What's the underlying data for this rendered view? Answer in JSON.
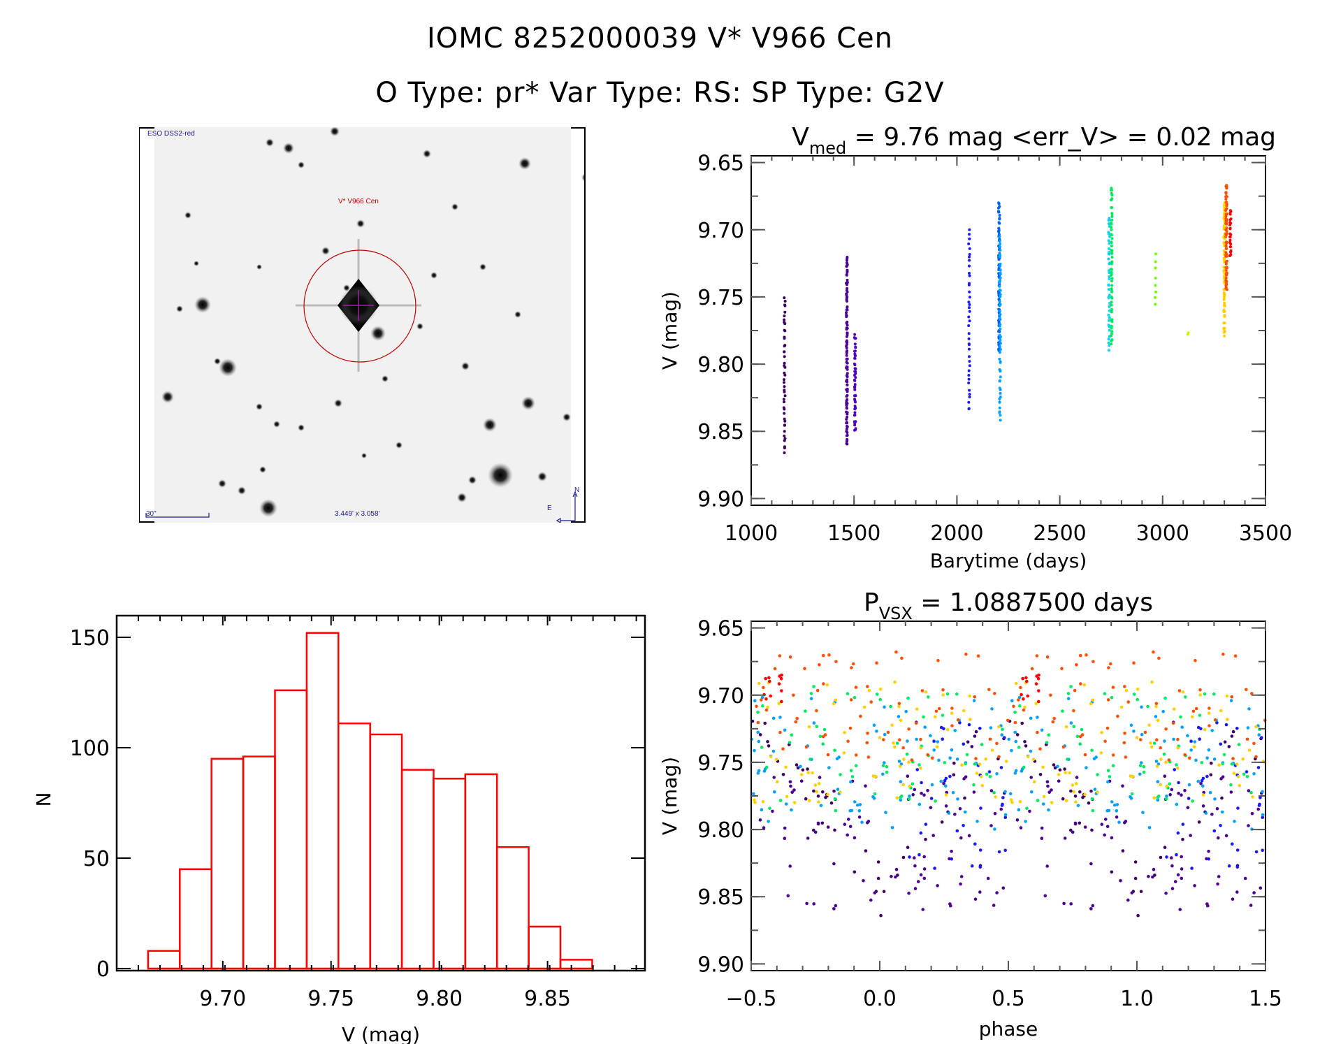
{
  "header": {
    "title_line1": "IOMC 8252000039    V* V966 Cen",
    "title_line2": "O Type: pr*  Var Type: RS:  SP Type: G2V"
  },
  "sky_image": {
    "survey_label": "ESO DSS2-red",
    "target_label": "V* V966 Cen",
    "scale_bar_label": "30\"",
    "field_of_view_label": "3.449' x 3.058'",
    "east_label": "E",
    "north_label": "N",
    "marker_color": "#c00000",
    "crosshair_color": "#a020a0"
  },
  "chart_data": [
    {
      "id": "light_curve",
      "type": "scatter",
      "title_main": "V",
      "title_sub": "med",
      "title_rest": " = 9.76 mag <err_V> = 0.02 mag",
      "xlabel": "Barytime (days)",
      "ylabel": "V (mag)",
      "xlim": [
        1000,
        3500
      ],
      "ylim": [
        9.645,
        9.905
      ],
      "y_inverted": true,
      "xticks": [
        1000,
        1500,
        2000,
        2500,
        3000,
        3500
      ],
      "xtick_labels": [
        "1000",
        "1500",
        "2000",
        "2500",
        "3000",
        "3500"
      ],
      "yticks": [
        9.65,
        9.7,
        9.75,
        9.8,
        9.85,
        9.9
      ],
      "ytick_labels": [
        "9.65",
        "9.70",
        "9.75",
        "9.80",
        "9.85",
        "9.90"
      ],
      "colormap": "rainbow (time-coded)",
      "groups": [
        {
          "x": 1162,
          "vmin": 9.75,
          "vmax": 9.866,
          "n": 45,
          "color": "#3d0060"
        },
        {
          "x": 1465,
          "vmin": 9.72,
          "vmax": 9.86,
          "n": 110,
          "color": "#4b0090"
        },
        {
          "x": 1505,
          "vmin": 9.778,
          "vmax": 9.85,
          "n": 50,
          "color": "#5000c0"
        },
        {
          "x": 2060,
          "vmin": 9.7,
          "vmax": 9.835,
          "n": 40,
          "color": "#1a1aff"
        },
        {
          "x": 2205,
          "vmin": 9.68,
          "vmax": 9.79,
          "n": 90,
          "color": "#0060ff"
        },
        {
          "x": 2210,
          "vmin": 9.705,
          "vmax": 9.842,
          "n": 60,
          "color": "#00a0ff"
        },
        {
          "x": 2740,
          "vmin": 9.69,
          "vmax": 9.79,
          "n": 45,
          "color": "#00d8e8"
        },
        {
          "x": 2752,
          "vmin": 9.668,
          "vmax": 9.785,
          "n": 60,
          "color": "#00e860"
        },
        {
          "x": 2965,
          "vmin": 9.718,
          "vmax": 9.757,
          "n": 8,
          "color": "#70ff00"
        },
        {
          "x": 3125,
          "vmin": 9.775,
          "vmax": 9.779,
          "n": 2,
          "color": "#d0f000"
        },
        {
          "x": 3300,
          "vmin": 9.68,
          "vmax": 9.779,
          "n": 80,
          "color": "#ffd000"
        },
        {
          "x": 3310,
          "vmin": 9.667,
          "vmax": 9.745,
          "n": 80,
          "color": "#ff5000"
        },
        {
          "x": 3330,
          "vmin": 9.685,
          "vmax": 9.72,
          "n": 25,
          "color": "#ff0000"
        }
      ]
    },
    {
      "id": "histogram",
      "type": "bar",
      "xlabel": "V (mag)",
      "ylabel": "N",
      "xlim": [
        9.651,
        9.895
      ],
      "ylim": [
        0,
        160
      ],
      "xticks": [
        9.7,
        9.75,
        9.8,
        9.85
      ],
      "xtick_labels": [
        "9.70",
        "9.75",
        "9.80",
        "9.85"
      ],
      "yticks": [
        0,
        50,
        100,
        150
      ],
      "ytick_labels": [
        "0",
        "50",
        "100",
        "150"
      ],
      "bar_color": "#ff0000",
      "bin_start": 9.6655,
      "bin_width": 0.01465,
      "values": [
        8,
        45,
        95,
        96,
        126,
        152,
        111,
        106,
        90,
        86,
        88,
        55,
        19,
        4
      ]
    },
    {
      "id": "phase_curve",
      "type": "scatter",
      "title_main": "P",
      "title_sub": "VSX",
      "title_rest": " = 1.0887500 days",
      "xlabel": "phase",
      "ylabel": "V (mag)",
      "xlim": [
        -0.5,
        1.5
      ],
      "ylim": [
        9.645,
        9.905
      ],
      "y_inverted": true,
      "period_days": 1.08875,
      "xticks": [
        -0.5,
        0.0,
        0.5,
        1.0,
        1.5
      ],
      "xtick_labels": [
        "−0.5",
        "0.0",
        "0.5",
        "1.0",
        "1.5"
      ],
      "yticks": [
        9.65,
        9.7,
        9.75,
        9.8,
        9.85,
        9.9
      ],
      "ytick_labels": [
        "9.65",
        "9.70",
        "9.75",
        "9.80",
        "9.85",
        "9.90"
      ],
      "note": "phase curve is the light-curve folded at P and repeated over two cycles; point groups share colors with the light curve",
      "groups": [
        {
          "phase": [
            0.55,
            0.95
          ],
          "vmin": 9.74,
          "vmax": 9.866,
          "n": 45,
          "color": "#3d0060",
          "shape": "dip_at_0"
        },
        {
          "phase": [
            0.0,
            1.0
          ],
          "vmin": 9.76,
          "vmax": 9.86,
          "n": 90,
          "color": "#4b0090"
        },
        {
          "phase": [
            0.1,
            0.5
          ],
          "vmin": 9.72,
          "vmax": 9.835,
          "n": 40,
          "color": "#1a1aff"
        },
        {
          "phase": [
            0.0,
            1.0
          ],
          "vmin": 9.7,
          "vmax": 9.8,
          "n": 90,
          "color": "#00a0ff"
        },
        {
          "phase": [
            0.0,
            1.0
          ],
          "vmin": 9.69,
          "vmax": 9.79,
          "n": 60,
          "color": "#00e860"
        },
        {
          "phase": [
            0.0,
            1.0
          ],
          "vmin": 9.69,
          "vmax": 9.78,
          "n": 70,
          "color": "#ffd000"
        },
        {
          "phase": [
            0.0,
            1.0
          ],
          "vmin": 9.667,
          "vmax": 9.75,
          "n": 70,
          "color": "#ff5000"
        },
        {
          "phase": [
            0.55,
            0.62
          ],
          "vmin": 9.685,
          "vmax": 9.705,
          "n": 12,
          "color": "#ff0000"
        }
      ]
    }
  ]
}
